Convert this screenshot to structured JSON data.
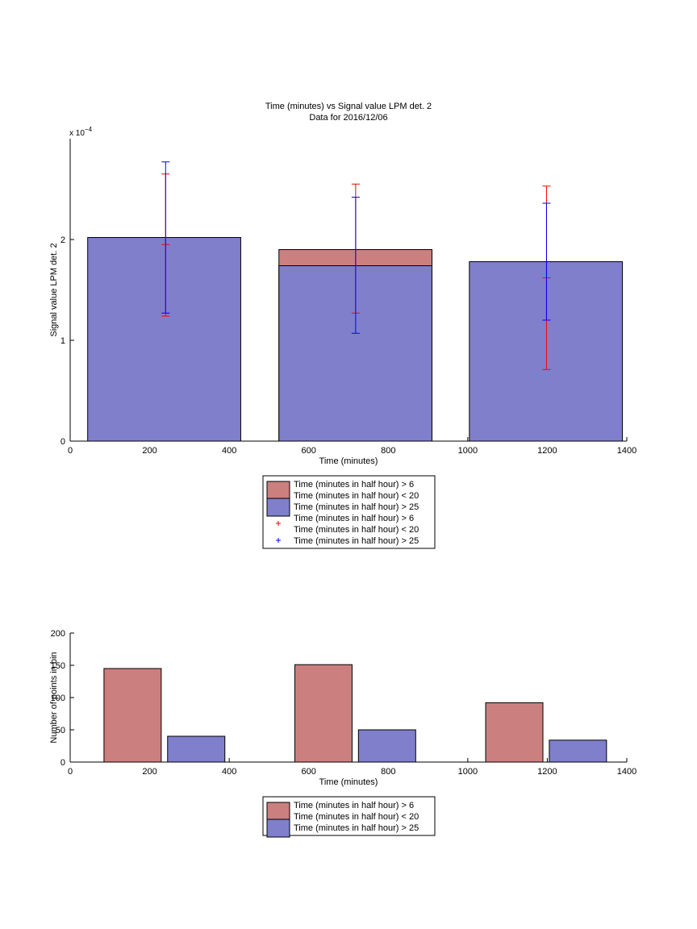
{
  "colors": {
    "red_fill": "#cc7f7f",
    "blue_fill": "#7f7fcc",
    "red_err": "#ff0000",
    "blue_err": "#0000ff",
    "axis": "#000000"
  },
  "legend": {
    "entries": [
      "Time (minutes in half hour) > 6\nTime (minutes in half hour) < 20",
      "Time (minutes in half hour) > 25",
      "Time (minutes in half hour) > 6\nTime (minutes in half hour) < 20",
      "Time (minutes in half hour) > 25"
    ]
  },
  "chart_data": [
    {
      "type": "bar",
      "title": "Time (minutes) vs Signal value LPM det. 2",
      "subtitle": "Data for 2016/12/06",
      "xlabel": "Time (minutes)",
      "ylabel": "Signal value LPM det. 2",
      "y_exponent": "x 10",
      "y_exponent_power": "−4",
      "xlim": [
        0,
        1400
      ],
      "ylim": [
        0,
        0.0003
      ],
      "xticks": [
        "0",
        "200",
        "400",
        "600",
        "800",
        "1000",
        "1200",
        "1400"
      ],
      "xtick_values": [
        0,
        200,
        400,
        600,
        800,
        1000,
        1200,
        1400
      ],
      "yticks": [
        "0",
        "1",
        "2"
      ],
      "ytick_values": [
        0,
        0.0001,
        0.0002
      ],
      "bars": [
        {
          "x0": 44,
          "x1": 429,
          "red": 0.000202,
          "blue": 0.000202
        },
        {
          "x0": 525,
          "x1": 910,
          "red": 0.00019,
          "blue": 0.000174
        },
        {
          "x0": 1004,
          "x1": 1389,
          "red": 0.000178,
          "blue": 0.000178
        }
      ],
      "errorbars": [
        {
          "series": "Time (minutes in half hour) > 6 and < 20",
          "x": 240,
          "low": 0.000124,
          "high": 0.000265,
          "mid": 0.000195
        },
        {
          "series": "Time (minutes in half hour) > 25",
          "x": 240,
          "low": 0.000127,
          "high": 0.000277
        },
        {
          "series": "Time (minutes in half hour) > 6 and < 20",
          "x": 718,
          "low": 0.000127,
          "high": 0.000255
        },
        {
          "series": "Time (minutes in half hour) > 25",
          "x": 718,
          "low": 0.000107,
          "high": 0.000242
        },
        {
          "series": "Time (minutes in half hour) > 6 and < 20",
          "x": 1198,
          "low": 7.1e-05,
          "high": 0.000253,
          "mid": 0.000162
        },
        {
          "series": "Time (minutes in half hour) > 25",
          "x": 1198,
          "low": 0.00012,
          "high": 0.000236
        }
      ],
      "grid": false,
      "legend_position": "below"
    },
    {
      "type": "bar",
      "title": "",
      "xlabel": "Time (minutes)",
      "ylabel": "Number of points in bin",
      "xlim": [
        0,
        1400
      ],
      "ylim": [
        0,
        200
      ],
      "xticks": [
        "0",
        "200",
        "400",
        "600",
        "800",
        "1000",
        "1200",
        "1400"
      ],
      "xtick_values": [
        0,
        200,
        400,
        600,
        800,
        1000,
        1200,
        1400
      ],
      "yticks": [
        "0",
        "50",
        "100",
        "150",
        "200"
      ],
      "ytick_values": [
        0,
        50,
        100,
        150,
        200
      ],
      "series": [
        {
          "name": "Time (minutes in half hour) > 6 and < 20",
          "color": "red",
          "bars": [
            {
              "x0": 85,
              "x1": 229,
              "value": 145
            },
            {
              "x0": 565,
              "x1": 709,
              "value": 151
            },
            {
              "x0": 1045,
              "x1": 1189,
              "value": 92
            }
          ]
        },
        {
          "name": "Time (minutes in half hour) > 25",
          "color": "blue",
          "bars": [
            {
              "x0": 245,
              "x1": 389,
              "value": 40
            },
            {
              "x0": 725,
              "x1": 869,
              "value": 50
            },
            {
              "x0": 1205,
              "x1": 1349,
              "value": 34
            }
          ]
        }
      ],
      "grid": false,
      "legend_position": "below"
    }
  ]
}
